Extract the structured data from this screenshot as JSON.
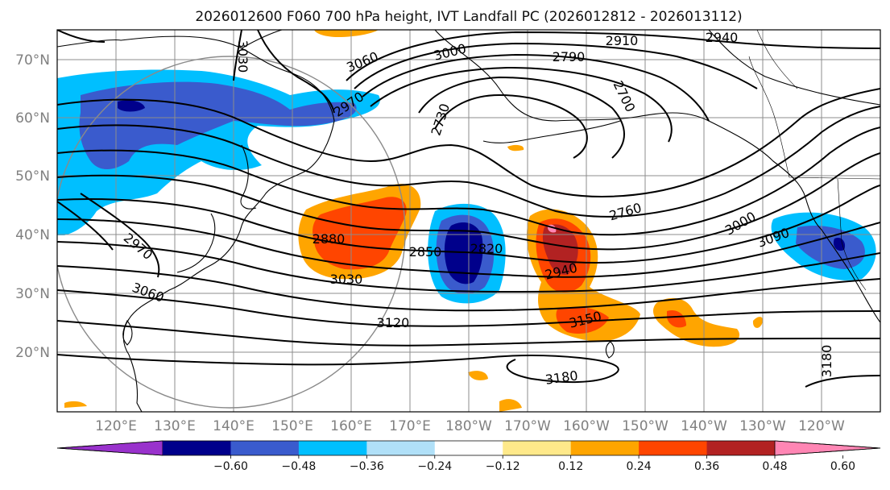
{
  "title": "2026012600 F060 700 hPa height, IVT Landfall PC (2026012812 - 2026013112)",
  "lat_labels": [
    "70°N",
    "60°N",
    "50°N",
    "40°N",
    "30°N",
    "20°N"
  ],
  "lon_labels": [
    "120°E",
    "130°E",
    "140°E",
    "150°E",
    "160°E",
    "170°E",
    "180°W",
    "170°W",
    "160°W",
    "150°W",
    "140°W",
    "130°W",
    "120°W"
  ],
  "colorbar": {
    "ticks": [
      "−0.60",
      "−0.48",
      "−0.36",
      "−0.24",
      "−0.12",
      "0.12",
      "0.24",
      "0.36",
      "0.48",
      "0.60"
    ],
    "colors": [
      "#9932cc",
      "#00008b",
      "#3a5bcd",
      "#00bfff",
      "#b0e0f8",
      "#ffffff",
      "#ffe98a",
      "#ffa500",
      "#ff4500",
      "#b22222",
      "#ff86b4"
    ]
  },
  "contour_labels": [
    "2910",
    "2940",
    "3060",
    "3000",
    "2790",
    "2700",
    "2730",
    "2970",
    "3030",
    "2760",
    "3000",
    "3090",
    "2880",
    "2850",
    "2820",
    "2940",
    "3030",
    "3060",
    "2970",
    "3120",
    "3150",
    "3180",
    "3180"
  ]
}
